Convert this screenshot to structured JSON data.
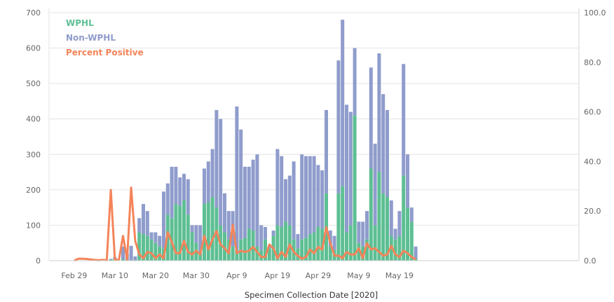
{
  "chart_data": {
    "type": "bar",
    "stacked": true,
    "xlabel": "Specimen Collection Date [2020]",
    "x_tick_labels": [
      "Feb 29",
      "Mar 10",
      "Mar 20",
      "Mar 30",
      "Apr 9",
      "Apr 19",
      "Apr 29",
      "May 9",
      "May 19"
    ],
    "ylim_left": [
      0,
      700
    ],
    "y_ticks_left": [
      "0",
      "100",
      "200",
      "300",
      "400",
      "500",
      "600",
      "700"
    ],
    "ylim_right": [
      0,
      100
    ],
    "y_ticks_right": [
      "0.0",
      "20.0",
      "40.0",
      "60.0",
      "80.0",
      "100.0"
    ],
    "grid": "horizontal",
    "legend_position": "top-left",
    "series": [
      {
        "name": "WPHL",
        "color": "#5dbf93",
        "axis": "left",
        "values": [
          0,
          0,
          0,
          0,
          0,
          0,
          0,
          0,
          0,
          3,
          6,
          0,
          4,
          2,
          1,
          2,
          80,
          75,
          70,
          60,
          50,
          40,
          35,
          130,
          120,
          160,
          155,
          170,
          130,
          80,
          50,
          20,
          160,
          165,
          180,
          150,
          100,
          80,
          60,
          40,
          30,
          60,
          65,
          90,
          85,
          40,
          30,
          60,
          35,
          70,
          100,
          95,
          110,
          100,
          60,
          35,
          60,
          65,
          75,
          80,
          95,
          90,
          190,
          40,
          30,
          190,
          210,
          80,
          100,
          410,
          50,
          40,
          60,
          260,
          100,
          250,
          190,
          180,
          70,
          60,
          70,
          240,
          150,
          110,
          5
        ]
      },
      {
        "name": "Non-WPHL",
        "color": "#8f9ccc",
        "axis": "left",
        "values": [
          0,
          0,
          0,
          0,
          0,
          0,
          0,
          0,
          0,
          2,
          4,
          0,
          36,
          18,
          41,
          10,
          40,
          85,
          70,
          20,
          30,
          30,
          160,
          88,
          145,
          105,
          80,
          75,
          100,
          20,
          50,
          80,
          100,
          115,
          135,
          275,
          300,
          110,
          80,
          100,
          405,
          310,
          200,
          175,
          200,
          260,
          70,
          35,
          5,
          15,
          215,
          200,
          120,
          140,
          220,
          40,
          240,
          230,
          220,
          215,
          175,
          165,
          235,
          45,
          40,
          375,
          470,
          360,
          320,
          190,
          60,
          70,
          80,
          285,
          230,
          335,
          280,
          245,
          100,
          30,
          70,
          315,
          150,
          40,
          35
        ]
      },
      {
        "name": "Percent Positive",
        "color": "#f4845a",
        "axis": "right",
        "values": [
          0,
          0.8,
          0.8,
          0.7,
          0.5,
          0.3,
          0.2,
          0.3,
          0.2,
          28.5,
          0.4,
          0.3,
          10,
          0.5,
          29.5,
          8,
          2.5,
          1,
          3.5,
          3,
          1,
          2.5,
          1,
          11.5,
          7.5,
          3,
          3,
          8,
          3.5,
          2.5,
          4,
          2.5,
          10,
          4.5,
          8.5,
          12,
          6.5,
          5,
          3,
          14.5,
          3,
          4,
          3.5,
          4,
          5.5,
          3.5,
          1.5,
          1.5,
          6.5,
          5,
          1,
          3.5,
          1.5,
          6.5,
          3.5,
          2,
          0.8,
          1.5,
          4.5,
          3,
          5.5,
          4.5,
          13.5,
          7,
          2,
          2,
          1,
          3.5,
          2.5,
          2.5,
          5,
          1,
          7,
          4.5,
          5,
          3.5,
          2,
          2.5,
          6,
          2.5,
          1.5,
          4,
          3,
          1.5,
          0.5
        ]
      }
    ]
  }
}
